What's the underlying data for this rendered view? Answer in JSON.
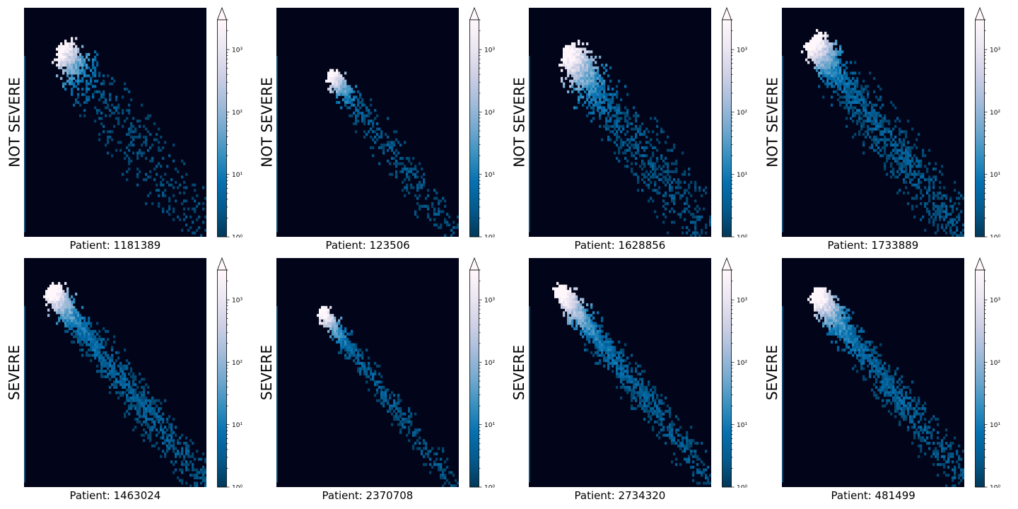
{
  "colors": {
    "background": "#02051a",
    "colormap": [
      "#023858",
      "#045a8d",
      "#0570b0",
      "#3690c0",
      "#74a9cf",
      "#a6bddb",
      "#d0d1e6",
      "#ece7f2",
      "#fff7fb"
    ],
    "axis_stripe": "#1a7fc0"
  },
  "chart_data": [
    {
      "type": "heatmap",
      "row_label": "NOT SEVERE",
      "xlabel": "Patient: 1181389",
      "colorbar": {
        "scale": "log",
        "range": [
          1,
          3000
        ],
        "ticks": [
          "10⁰",
          "10¹",
          "10²",
          "10³"
        ],
        "extend": "max"
      },
      "density": {
        "start": [
          0.21,
          0.18
        ],
        "end": [
          0.97,
          0.96
        ],
        "spread": 0.07,
        "spread_end": 0.28,
        "core": 0.11,
        "tail_density": 0.35
      }
    },
    {
      "type": "heatmap",
      "row_label": "NOT SEVERE",
      "xlabel": "Patient: 123506",
      "colorbar": {
        "scale": "log",
        "range": [
          1,
          3000
        ],
        "ticks": [
          "10⁰",
          "10¹",
          "10²",
          "10³"
        ],
        "extend": "max"
      },
      "density": {
        "start": [
          0.3,
          0.29
        ],
        "end": [
          0.98,
          0.99
        ],
        "spread": 0.04,
        "spread_end": 0.16,
        "core": 0.1,
        "tail_density": 0.55
      }
    },
    {
      "type": "heatmap",
      "row_label": "NOT SEVERE",
      "xlabel": "Patient: 1628856",
      "colorbar": {
        "scale": "log",
        "range": [
          1,
          3000
        ],
        "ticks": [
          "10⁰",
          "10¹",
          "10²",
          "10³"
        ],
        "extend": "max"
      },
      "density": {
        "start": [
          0.21,
          0.19
        ],
        "end": [
          0.95,
          0.97
        ],
        "spread": 0.06,
        "spread_end": 0.26,
        "core": 0.16,
        "tail_density": 0.6
      }
    },
    {
      "type": "heatmap",
      "row_label": "NOT SEVERE",
      "xlabel": "Patient: 1733889",
      "colorbar": {
        "scale": "log",
        "range": [
          1,
          3000
        ],
        "ticks": [
          "10⁰",
          "10¹",
          "10²",
          "10³"
        ],
        "extend": "max"
      },
      "density": {
        "start": [
          0.17,
          0.15
        ],
        "end": [
          0.97,
          0.97
        ],
        "spread": 0.08,
        "spread_end": 0.2,
        "core": 0.1,
        "tail_density": 0.85
      }
    },
    {
      "type": "heatmap",
      "row_label": "SEVERE",
      "xlabel": "Patient: 1463024",
      "colorbar": {
        "scale": "log",
        "range": [
          1,
          3000
        ],
        "ticks": [
          "10⁰",
          "10¹",
          "10²",
          "10³"
        ],
        "extend": "max"
      },
      "density": {
        "start": [
          0.15,
          0.14
        ],
        "end": [
          0.99,
          0.99
        ],
        "spread": 0.06,
        "spread_end": 0.15,
        "core": 0.1,
        "tail_density": 1.0
      }
    },
    {
      "type": "heatmap",
      "row_label": "SEVERE",
      "xlabel": "Patient: 2370708",
      "colorbar": {
        "scale": "log",
        "range": [
          1,
          3000
        ],
        "ticks": [
          "10⁰",
          "10¹",
          "10²",
          "10³"
        ],
        "extend": "max"
      },
      "density": {
        "start": [
          0.25,
          0.23
        ],
        "end": [
          0.97,
          0.99
        ],
        "spread": 0.04,
        "spread_end": 0.1,
        "core": 0.1,
        "tail_density": 0.8
      }
    },
    {
      "type": "heatmap",
      "row_label": "SEVERE",
      "xlabel": "Patient: 2734320",
      "colorbar": {
        "scale": "log",
        "range": [
          1,
          3000
        ],
        "ticks": [
          "10⁰",
          "10¹",
          "10²",
          "10³"
        ],
        "extend": "max"
      },
      "density": {
        "start": [
          0.17,
          0.14
        ],
        "end": [
          0.98,
          0.96
        ],
        "spread": 0.05,
        "spread_end": 0.13,
        "core": 0.14,
        "tail_density": 1.0
      }
    },
    {
      "type": "heatmap",
      "row_label": "SEVERE",
      "xlabel": "Patient: 481499",
      "colorbar": {
        "scale": "log",
        "range": [
          1,
          3000
        ],
        "ticks": [
          "10⁰",
          "10¹",
          "10²",
          "10³"
        ],
        "extend": "max"
      },
      "density": {
        "start": [
          0.19,
          0.16
        ],
        "end": [
          0.97,
          0.94
        ],
        "spread": 0.06,
        "spread_end": 0.15,
        "core": 0.12,
        "tail_density": 1.0
      }
    }
  ]
}
